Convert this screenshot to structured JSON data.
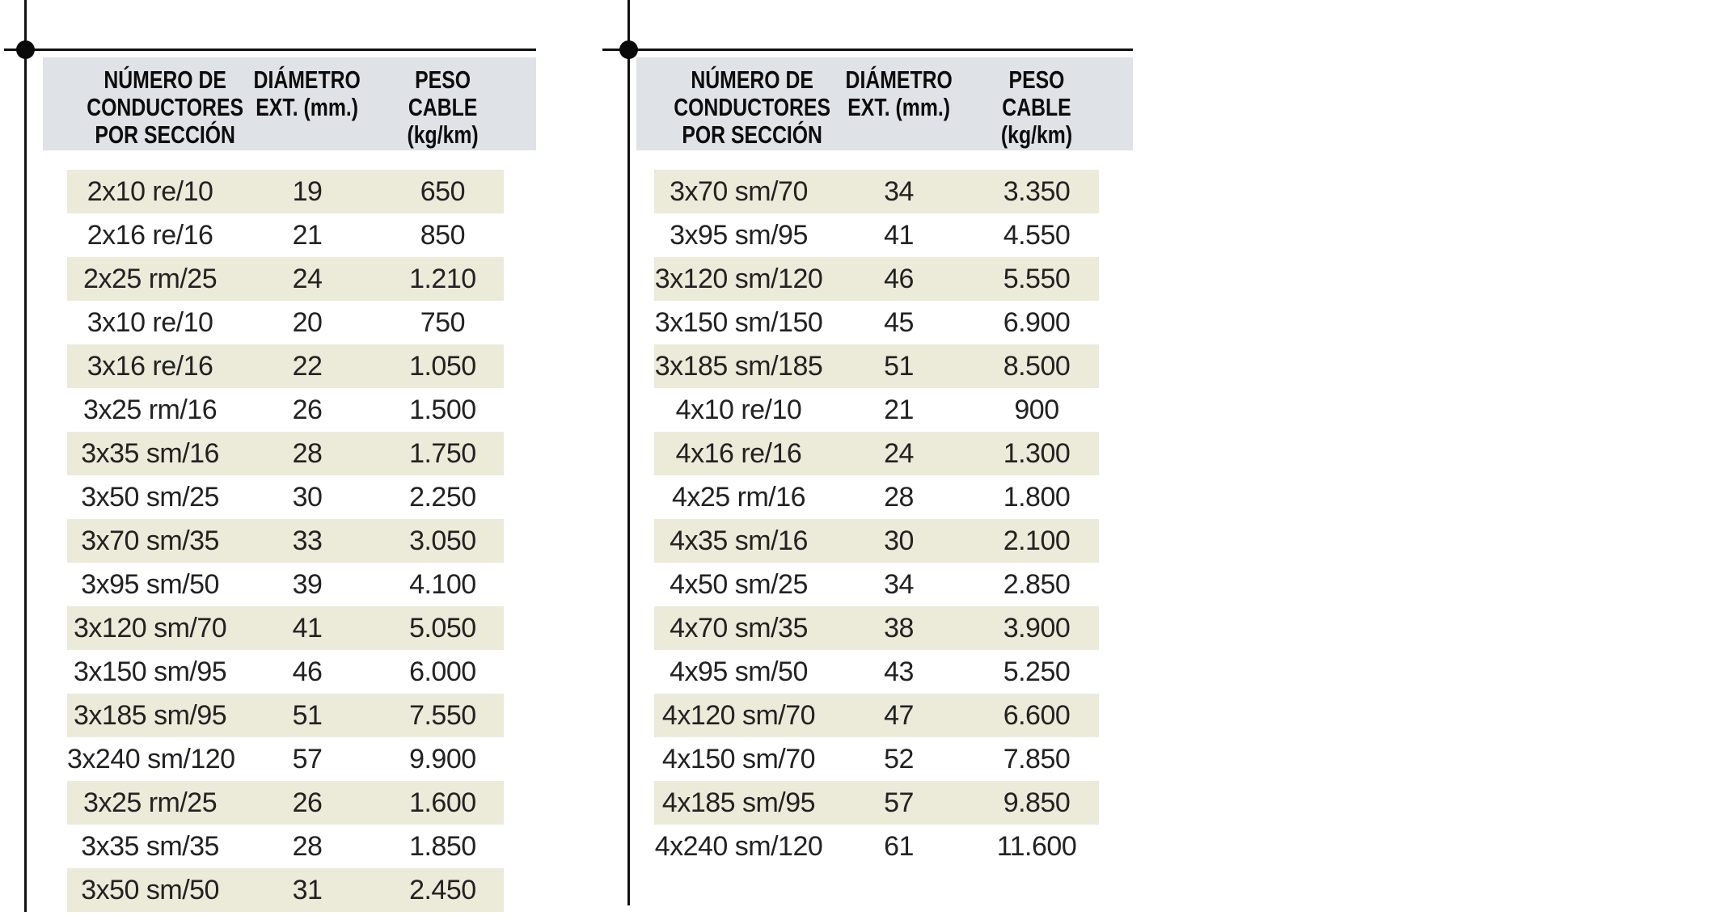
{
  "meta": {
    "language": "es",
    "colors": {
      "header_background": "#dfe2e6",
      "row_stripe_background": "#ecead9",
      "rule_black": "#101010",
      "text": "#222222",
      "page_background": "#ffffff"
    }
  },
  "tables": [
    {
      "id": "left",
      "columns": [
        "NÚMERO DE\nCONDUCTORES\nPOR SECCIÓN",
        "DIÁMETRO\nEXT. (mm.)",
        "PESO CABLE\n(kg/km)"
      ],
      "rows": [
        [
          "2x10 re/10",
          "19",
          "650"
        ],
        [
          "2x16 re/16",
          "21",
          "850"
        ],
        [
          "2x25 rm/25",
          "24",
          "1.210"
        ],
        [
          "3x10 re/10",
          "20",
          "750"
        ],
        [
          "3x16 re/16",
          "22",
          "1.050"
        ],
        [
          "3x25 rm/16",
          "26",
          "1.500"
        ],
        [
          "3x35 sm/16",
          "28",
          "1.750"
        ],
        [
          "3x50 sm/25",
          "30",
          "2.250"
        ],
        [
          "3x70 sm/35",
          "33",
          "3.050"
        ],
        [
          "3x95 sm/50",
          "39",
          "4.100"
        ],
        [
          "3x120 sm/70",
          "41",
          "5.050"
        ],
        [
          "3x150 sm/95",
          "46",
          "6.000"
        ],
        [
          "3x185 sm/95",
          "51",
          "7.550"
        ],
        [
          "3x240 sm/120",
          "57",
          "9.900"
        ],
        [
          "3x25 rm/25",
          "26",
          "1.600"
        ],
        [
          "3x35 sm/35",
          "28",
          "1.850"
        ],
        [
          "3x50 sm/50",
          "31",
          "2.450"
        ]
      ]
    },
    {
      "id": "right",
      "columns": [
        "NÚMERO DE\nCONDUCTORES\nPOR SECCIÓN",
        "DIÁMETRO\nEXT. (mm.)",
        "PESO CABLE\n(kg/km)"
      ],
      "rows": [
        [
          "3x70 sm/70",
          "34",
          "3.350"
        ],
        [
          "3x95 sm/95",
          "41",
          "4.550"
        ],
        [
          "3x120 sm/120",
          "46",
          "5.550"
        ],
        [
          "3x150 sm/150",
          "45",
          "6.900"
        ],
        [
          "3x185 sm/185",
          "51",
          "8.500"
        ],
        [
          "4x10 re/10",
          "21",
          "900"
        ],
        [
          "4x16 re/16",
          "24",
          "1.300"
        ],
        [
          "4x25 rm/16",
          "28",
          "1.800"
        ],
        [
          "4x35 sm/16",
          "30",
          "2.100"
        ],
        [
          "4x50 sm/25",
          "34",
          "2.850"
        ],
        [
          "4x70 sm/35",
          "38",
          "3.900"
        ],
        [
          "4x95 sm/50",
          "43",
          "5.250"
        ],
        [
          "4x120 sm/70",
          "47",
          "6.600"
        ],
        [
          "4x150 sm/70",
          "52",
          "7.850"
        ],
        [
          "4x185 sm/95",
          "57",
          "9.850"
        ],
        [
          "4x240 sm/120",
          "61",
          "11.600"
        ]
      ]
    }
  ]
}
